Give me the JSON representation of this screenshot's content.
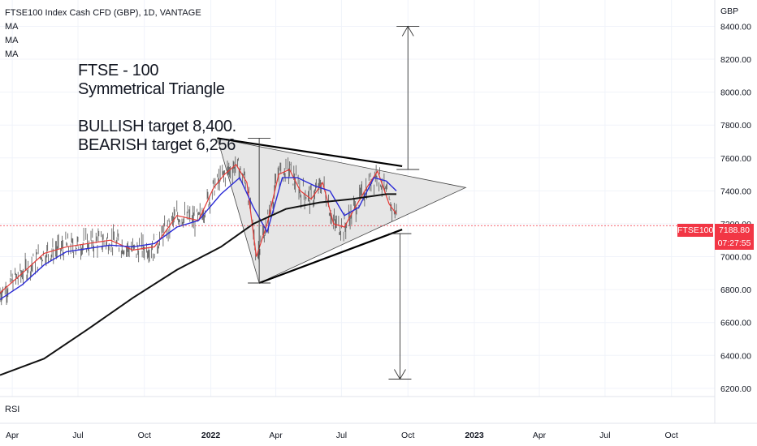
{
  "header": {
    "instrument": "FTSE100 Index Cash CFD (GBP), 1D, VANTAGE",
    "indicators": [
      "MA",
      "MA",
      "MA"
    ]
  },
  "annotation": {
    "lines": [
      "FTSE - 100",
      "Symmetrical Triangle",
      "",
      "BULLISH target 8,400.",
      "BEARISH target 6,256"
    ]
  },
  "price_axis": {
    "currency": "GBP",
    "ticks": [
      "8400.00",
      "8200.00",
      "8000.00",
      "7800.00",
      "7600.00",
      "7400.00",
      "7200.00",
      "7000.00",
      "6800.00",
      "6600.00",
      "6400.00",
      "6200.00"
    ]
  },
  "time_axis": {
    "ticks": [
      "Apr",
      "Jul",
      "Oct",
      "2022",
      "Apr",
      "Jul",
      "Oct",
      "2023",
      "Apr",
      "Jul",
      "Oct"
    ]
  },
  "price_label": {
    "symbol": "FTSE100",
    "price": "7188.80",
    "countdown": "07:27:55"
  },
  "rsi_pane": {
    "label": "RSI"
  },
  "colors": {
    "price": "#555555",
    "ma_fast": "#e53935",
    "ma_mid": "#2a2ad6",
    "ma_slow": "#111111",
    "pattern_fill": "#e6e6e6",
    "current_price": "#f23645"
  },
  "chart_data": {
    "type": "line",
    "title": "FTSE100 Index Cash CFD (GBP), 1D, VANTAGE",
    "xlabel": "",
    "ylabel": "GBP",
    "ylim": [
      6150,
      8560
    ],
    "x_range": [
      "2021-03-15",
      "2023-11-30"
    ],
    "current_price": 7188.8,
    "series": [
      {
        "name": "MA",
        "points": [
          [
            "2021-03-15",
            6780
          ],
          [
            "2021-04-15",
            6900
          ],
          [
            "2021-05-15",
            7020
          ],
          [
            "2021-06-15",
            7060
          ],
          [
            "2021-07-15",
            7080
          ],
          [
            "2021-08-15",
            7100
          ],
          [
            "2021-09-15",
            7040
          ],
          [
            "2021-10-15",
            7060
          ],
          [
            "2021-11-15",
            7250
          ],
          [
            "2021-12-15",
            7220
          ],
          [
            "2022-01-05",
            7420
          ],
          [
            "2022-01-20",
            7500
          ],
          [
            "2022-02-05",
            7560
          ],
          [
            "2022-02-20",
            7450
          ],
          [
            "2022-03-05",
            7000
          ],
          [
            "2022-03-20",
            7200
          ],
          [
            "2022-04-05",
            7500
          ],
          [
            "2022-04-20",
            7530
          ],
          [
            "2022-05-05",
            7400
          ],
          [
            "2022-05-20",
            7350
          ],
          [
            "2022-06-05",
            7450
          ],
          [
            "2022-06-20",
            7200
          ],
          [
            "2022-07-05",
            7180
          ],
          [
            "2022-07-20",
            7300
          ],
          [
            "2022-08-05",
            7420
          ],
          [
            "2022-08-20",
            7520
          ],
          [
            "2022-09-05",
            7320
          ],
          [
            "2022-09-15",
            7260
          ]
        ]
      },
      {
        "name": "MA",
        "points": [
          [
            "2021-03-15",
            6740
          ],
          [
            "2021-04-15",
            6830
          ],
          [
            "2021-05-15",
            6950
          ],
          [
            "2021-06-15",
            7030
          ],
          [
            "2021-07-15",
            7050
          ],
          [
            "2021-08-15",
            7070
          ],
          [
            "2021-09-15",
            7060
          ],
          [
            "2021-10-15",
            7080
          ],
          [
            "2021-11-15",
            7180
          ],
          [
            "2021-12-15",
            7220
          ],
          [
            "2022-01-15",
            7380
          ],
          [
            "2022-02-10",
            7480
          ],
          [
            "2022-03-01",
            7300
          ],
          [
            "2022-03-20",
            7150
          ],
          [
            "2022-04-10",
            7480
          ],
          [
            "2022-05-01",
            7480
          ],
          [
            "2022-05-25",
            7430
          ],
          [
            "2022-06-15",
            7400
          ],
          [
            "2022-07-05",
            7250
          ],
          [
            "2022-07-25",
            7300
          ],
          [
            "2022-08-15",
            7480
          ],
          [
            "2022-09-01",
            7460
          ],
          [
            "2022-09-15",
            7400
          ]
        ]
      },
      {
        "name": "MA",
        "points": [
          [
            "2021-03-15",
            6280
          ],
          [
            "2021-05-15",
            6380
          ],
          [
            "2021-07-15",
            6560
          ],
          [
            "2021-09-15",
            6750
          ],
          [
            "2021-11-15",
            6920
          ],
          [
            "2022-01-15",
            7060
          ],
          [
            "2022-03-01",
            7200
          ],
          [
            "2022-04-15",
            7290
          ],
          [
            "2022-06-01",
            7330
          ],
          [
            "2022-07-15",
            7350
          ],
          [
            "2022-09-01",
            7380
          ],
          [
            "2022-09-15",
            7380
          ]
        ]
      }
    ],
    "drawings": [
      {
        "label": "triangle-upper",
        "points": [
          [
            "2022-01-10",
            7720
          ],
          [
            "2022-09-23",
            7550
          ]
        ]
      },
      {
        "label": "triangle-lower",
        "points": [
          [
            "2022-03-09",
            6840
          ],
          [
            "2022-09-23",
            7165
          ]
        ]
      },
      {
        "label": "triangle-apex",
        "points": [
          [
            "2022-12-20",
            7420
          ]
        ]
      },
      {
        "label": "pattern-height",
        "points": [
          [
            "2022-03-09",
            6840
          ],
          [
            "2022-03-09",
            7720
          ]
        ]
      },
      {
        "label": "bullish-target",
        "points": [
          [
            "2022-10-01",
            7530
          ],
          [
            "2022-10-01",
            8400
          ]
        ]
      },
      {
        "label": "bearish-target",
        "points": [
          [
            "2022-09-20",
            7140
          ],
          [
            "2022-09-20",
            6256
          ]
        ]
      }
    ],
    "grid": true,
    "legend": "top-left"
  }
}
